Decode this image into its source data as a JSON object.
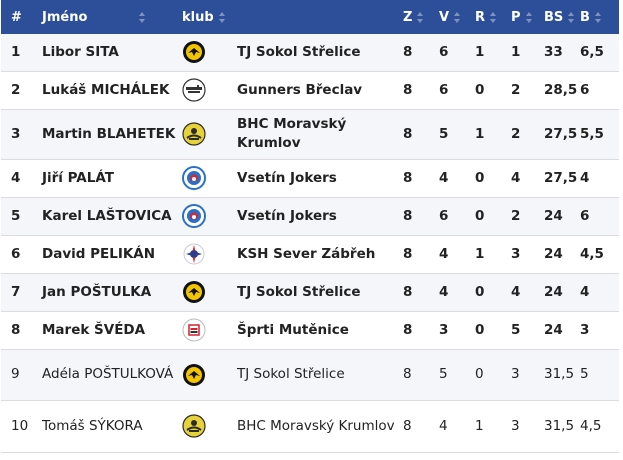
{
  "table": {
    "headers": {
      "rank": "#",
      "name": "Jméno",
      "club": "klub",
      "z": "Z",
      "v": "V",
      "r": "R",
      "p": "P",
      "bs": "BS",
      "b": "B"
    },
    "rows": [
      {
        "rank": "1",
        "name": "Libor SITA",
        "logo": "sokol-strelice-logo",
        "club": "TJ Sokol Střelice",
        "z": "8",
        "v": "6",
        "r": "1",
        "p": "1",
        "bs": "33",
        "b": "6,5"
      },
      {
        "rank": "2",
        "name": "Lukáš MICHÁLEK",
        "logo": "gunners-breclav-logo",
        "club": "Gunners Břeclav",
        "z": "8",
        "v": "6",
        "r": "0",
        "p": "2",
        "bs": "28,5",
        "b": "6"
      },
      {
        "rank": "3",
        "name": "Martin BLAHETEK",
        "logo": "bhc-moravsky-krumlov-logo",
        "club": "BHC Moravský Krumlov",
        "z": "8",
        "v": "5",
        "r": "1",
        "p": "2",
        "bs": "27,5",
        "b": "5,5"
      },
      {
        "rank": "4",
        "name": "Jiří PALÁT",
        "logo": "vsetin-jokers-logo",
        "club": "Vsetín Jokers",
        "z": "8",
        "v": "4",
        "r": "0",
        "p": "4",
        "bs": "27,5",
        "b": "4"
      },
      {
        "rank": "5",
        "name": "Karel LAŠTOVICA",
        "logo": "vsetin-jokers-logo",
        "club": "Vsetín Jokers",
        "z": "8",
        "v": "6",
        "r": "0",
        "p": "2",
        "bs": "24",
        "b": "6"
      },
      {
        "rank": "6",
        "name": "David PELIKÁN",
        "logo": "ksh-sever-zabreh-logo",
        "club": "KSH Sever Zábřeh",
        "z": "8",
        "v": "4",
        "r": "1",
        "p": "3",
        "bs": "24",
        "b": "4,5"
      },
      {
        "rank": "7",
        "name": "Jan POŠTULKA",
        "logo": "sokol-strelice-logo",
        "club": "TJ Sokol Střelice",
        "z": "8",
        "v": "4",
        "r": "0",
        "p": "4",
        "bs": "24",
        "b": "4"
      },
      {
        "rank": "8",
        "name": "Marek ŠVÉDA",
        "logo": "sprti-mutenice-logo",
        "club": "Šprti Mutěnice",
        "z": "8",
        "v": "3",
        "r": "0",
        "p": "5",
        "bs": "24",
        "b": "3"
      },
      {
        "rank": "9",
        "name": "Adéla POŠTULKOVÁ",
        "logo": "sokol-strelice-logo",
        "club": "TJ Sokol Střelice",
        "z": "8",
        "v": "5",
        "r": "0",
        "p": "3",
        "bs": "31,5",
        "b": "5"
      },
      {
        "rank": "10",
        "name": "Tomáš SÝKORA",
        "logo": "bhc-moravsky-krumlov-logo",
        "club": "BHC Moravský Krumlov",
        "z": "8",
        "v": "4",
        "r": "1",
        "p": "3",
        "bs": "31,5",
        "b": "4,5"
      }
    ]
  },
  "colors": {
    "header_bg": "#2d4f99",
    "header_text": "#ffffff",
    "row_odd": "#f4f6f9",
    "row_even": "#ffffff"
  }
}
